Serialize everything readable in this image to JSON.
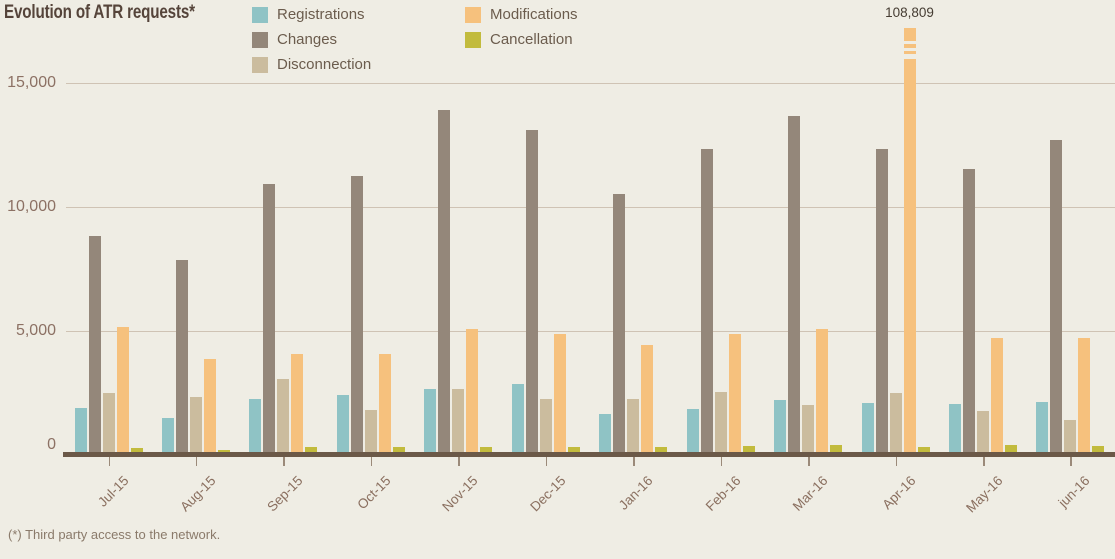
{
  "title": "Evolution of ATR requests*",
  "footnote": "(*) Third party access to the network.",
  "annotation": {
    "text": "108,809",
    "month": "Apr-16",
    "series": "Modifications"
  },
  "colors": {
    "background": "#efede4",
    "gridline": "#cfc3b4",
    "axis_line": "#6b5948",
    "title_text": "#55443a",
    "y_label_text": "#8c7164",
    "x_label_text": "#8a6f5f",
    "legend_text": "#6b5c4d",
    "annotation_text": "#453c32",
    "footnote_text": "#8a7a6a"
  },
  "chart_data": {
    "type": "bar",
    "title": "Evolution of ATR requests*",
    "categories": [
      "Jul-15",
      "Aug-15",
      "Sep-15",
      "Oct-15",
      "Nov-15",
      "Dec-15",
      "Jan-16",
      "Feb-16",
      "Mar-16",
      "Apr-16",
      "May-16",
      "jun-16"
    ],
    "series": [
      {
        "name": "Registrations",
        "color": "#8fc3c5",
        "values": [
          1800,
          1400,
          2150,
          2300,
          2550,
          2750,
          1550,
          1750,
          2100,
          2000,
          1950,
          2050
        ]
      },
      {
        "name": "Changes",
        "color": "#94877a",
        "values": [
          8800,
          7800,
          10900,
          11200,
          13900,
          13100,
          10500,
          12300,
          13650,
          12300,
          11500,
          12700
        ]
      },
      {
        "name": "Disconnection",
        "color": "#cbbc9e",
        "values": [
          2400,
          2250,
          2950,
          1700,
          2550,
          2150,
          2150,
          2450,
          1900,
          2400,
          1650,
          1300
        ]
      },
      {
        "name": "Modifications",
        "color": "#f6c17d",
        "values": [
          5100,
          3800,
          4000,
          4000,
          5000,
          4800,
          4350,
          4800,
          5000,
          108809,
          4650,
          4650
        ]
      },
      {
        "name": "Cancellation",
        "color": "#c2bb3d",
        "values": [
          150,
          100,
          200,
          200,
          200,
          200,
          200,
          250,
          300,
          200,
          300,
          250
        ]
      }
    ],
    "ylim": [
      0,
      15000
    ],
    "yticks": [
      "0",
      "5,000",
      "10,000",
      "15,000"
    ],
    "grid": true,
    "legend_position": "top",
    "legend_columns": [
      [
        "Registrations",
        "Changes",
        "Disconnection"
      ],
      [
        "Modifications",
        "Cancellation"
      ]
    ],
    "broken_bar": {
      "category": "Apr-16",
      "series": "Modifications",
      "value": 108809
    },
    "annotations": [
      {
        "text": "108,809",
        "category": "Apr-16",
        "series": "Modifications"
      }
    ],
    "xlabel": "",
    "ylabel": ""
  }
}
